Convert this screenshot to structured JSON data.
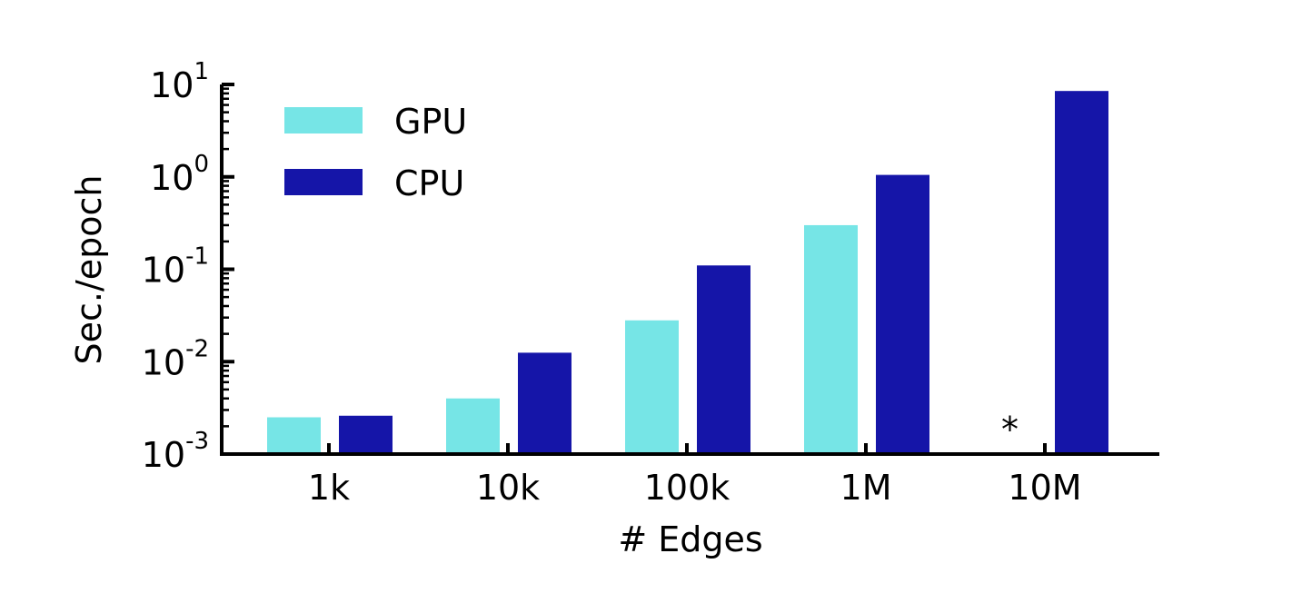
{
  "chart_data": {
    "type": "bar",
    "scale_y": "log",
    "categories": [
      "1k",
      "10k",
      "100k",
      "1M",
      "10M"
    ],
    "series": [
      {
        "name": "GPU",
        "color": "#76e5e6",
        "values": [
          0.0025,
          0.004,
          0.028,
          0.3,
          null
        ]
      },
      {
        "name": "CPU",
        "color": "#1515a8",
        "values": [
          0.0026,
          0.0125,
          0.11,
          1.05,
          8.5
        ]
      }
    ],
    "missing_marker": {
      "category": "10M",
      "series": "GPU",
      "text": "*"
    },
    "xlabel": "# Edges",
    "ylabel": "Sec./epoch",
    "ylim": [
      0.001,
      10
    ],
    "yticks": [
      {
        "base": "10",
        "exp": "-3",
        "value": 0.001
      },
      {
        "base": "10",
        "exp": "-2",
        "value": 0.01
      },
      {
        "base": "10",
        "exp": "-1",
        "value": 0.1
      },
      {
        "base": "10",
        "exp": "0",
        "value": 1
      },
      {
        "base": "10",
        "exp": "1",
        "value": 10
      }
    ],
    "legend_position": "top-left",
    "grid": false
  }
}
